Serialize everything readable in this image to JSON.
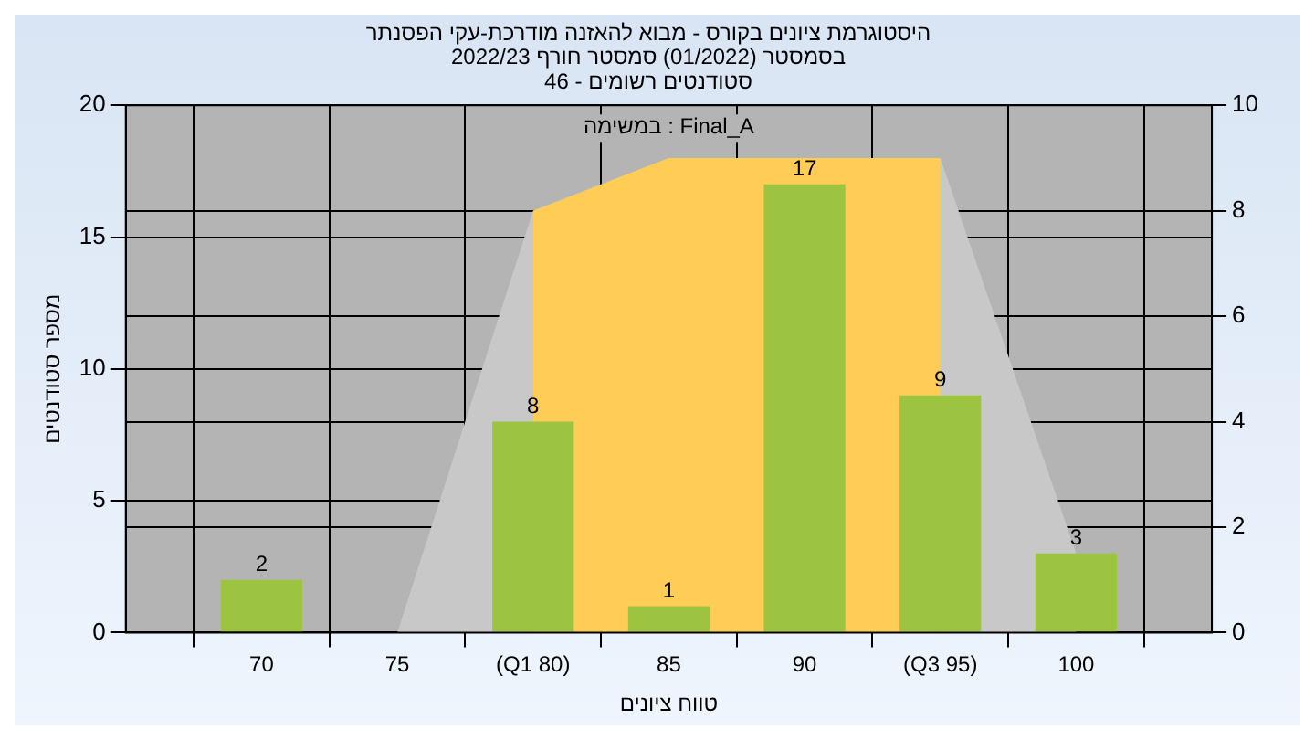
{
  "chart_data": {
    "type": "bar",
    "title": [
      "היסטוגרמת ציונים בקורס - מבוא להאזנה מודרכת-עקי הפסנתר",
      "בסמסטר (01/2022) סמסטר חורף 2022/23",
      "סטודנטים רשומים - 46"
    ],
    "xlabel": "טווח ציונים",
    "ylabel": "מספר סטודנטים",
    "x": [
      70,
      75,
      80,
      85,
      90,
      95,
      100
    ],
    "series": [
      {
        "color": "#9cc440",
        "values": [
          2,
          0,
          8,
          1,
          17,
          9,
          3
        ],
        "value_labels": [
          "2",
          null,
          "8",
          "1",
          "17",
          "9",
          "3"
        ]
      },
      {
        "type": "area",
        "axis": "y2",
        "color": "#c8c8c8",
        "x": [
          75,
          80,
          85,
          95,
          100
        ],
        "values": [
          0,
          8,
          9,
          9,
          1.5
        ]
      },
      {
        "type": "area",
        "axis": "y2",
        "color": "#ffcc55",
        "x": [
          80,
          85,
          95
        ],
        "values": [
          8,
          9,
          9
        ]
      }
    ],
    "xlim": [
      65,
      105
    ],
    "xticks": [
      70,
      75,
      {
        "value": 80,
        "label": "(Q1 80)"
      },
      85,
      90,
      {
        "value": 95,
        "label": "(Q3 95)"
      },
      100
    ],
    "ylim": [
      0,
      20
    ],
    "yticks": [
      0,
      5,
      10,
      15,
      20
    ],
    "y2lim": [
      0,
      10
    ],
    "y2ticks": [
      0,
      2,
      4,
      6,
      8,
      10
    ],
    "annotations": [
      "במשימה : Final_A"
    ],
    "grid": true,
    "legend": false
  }
}
